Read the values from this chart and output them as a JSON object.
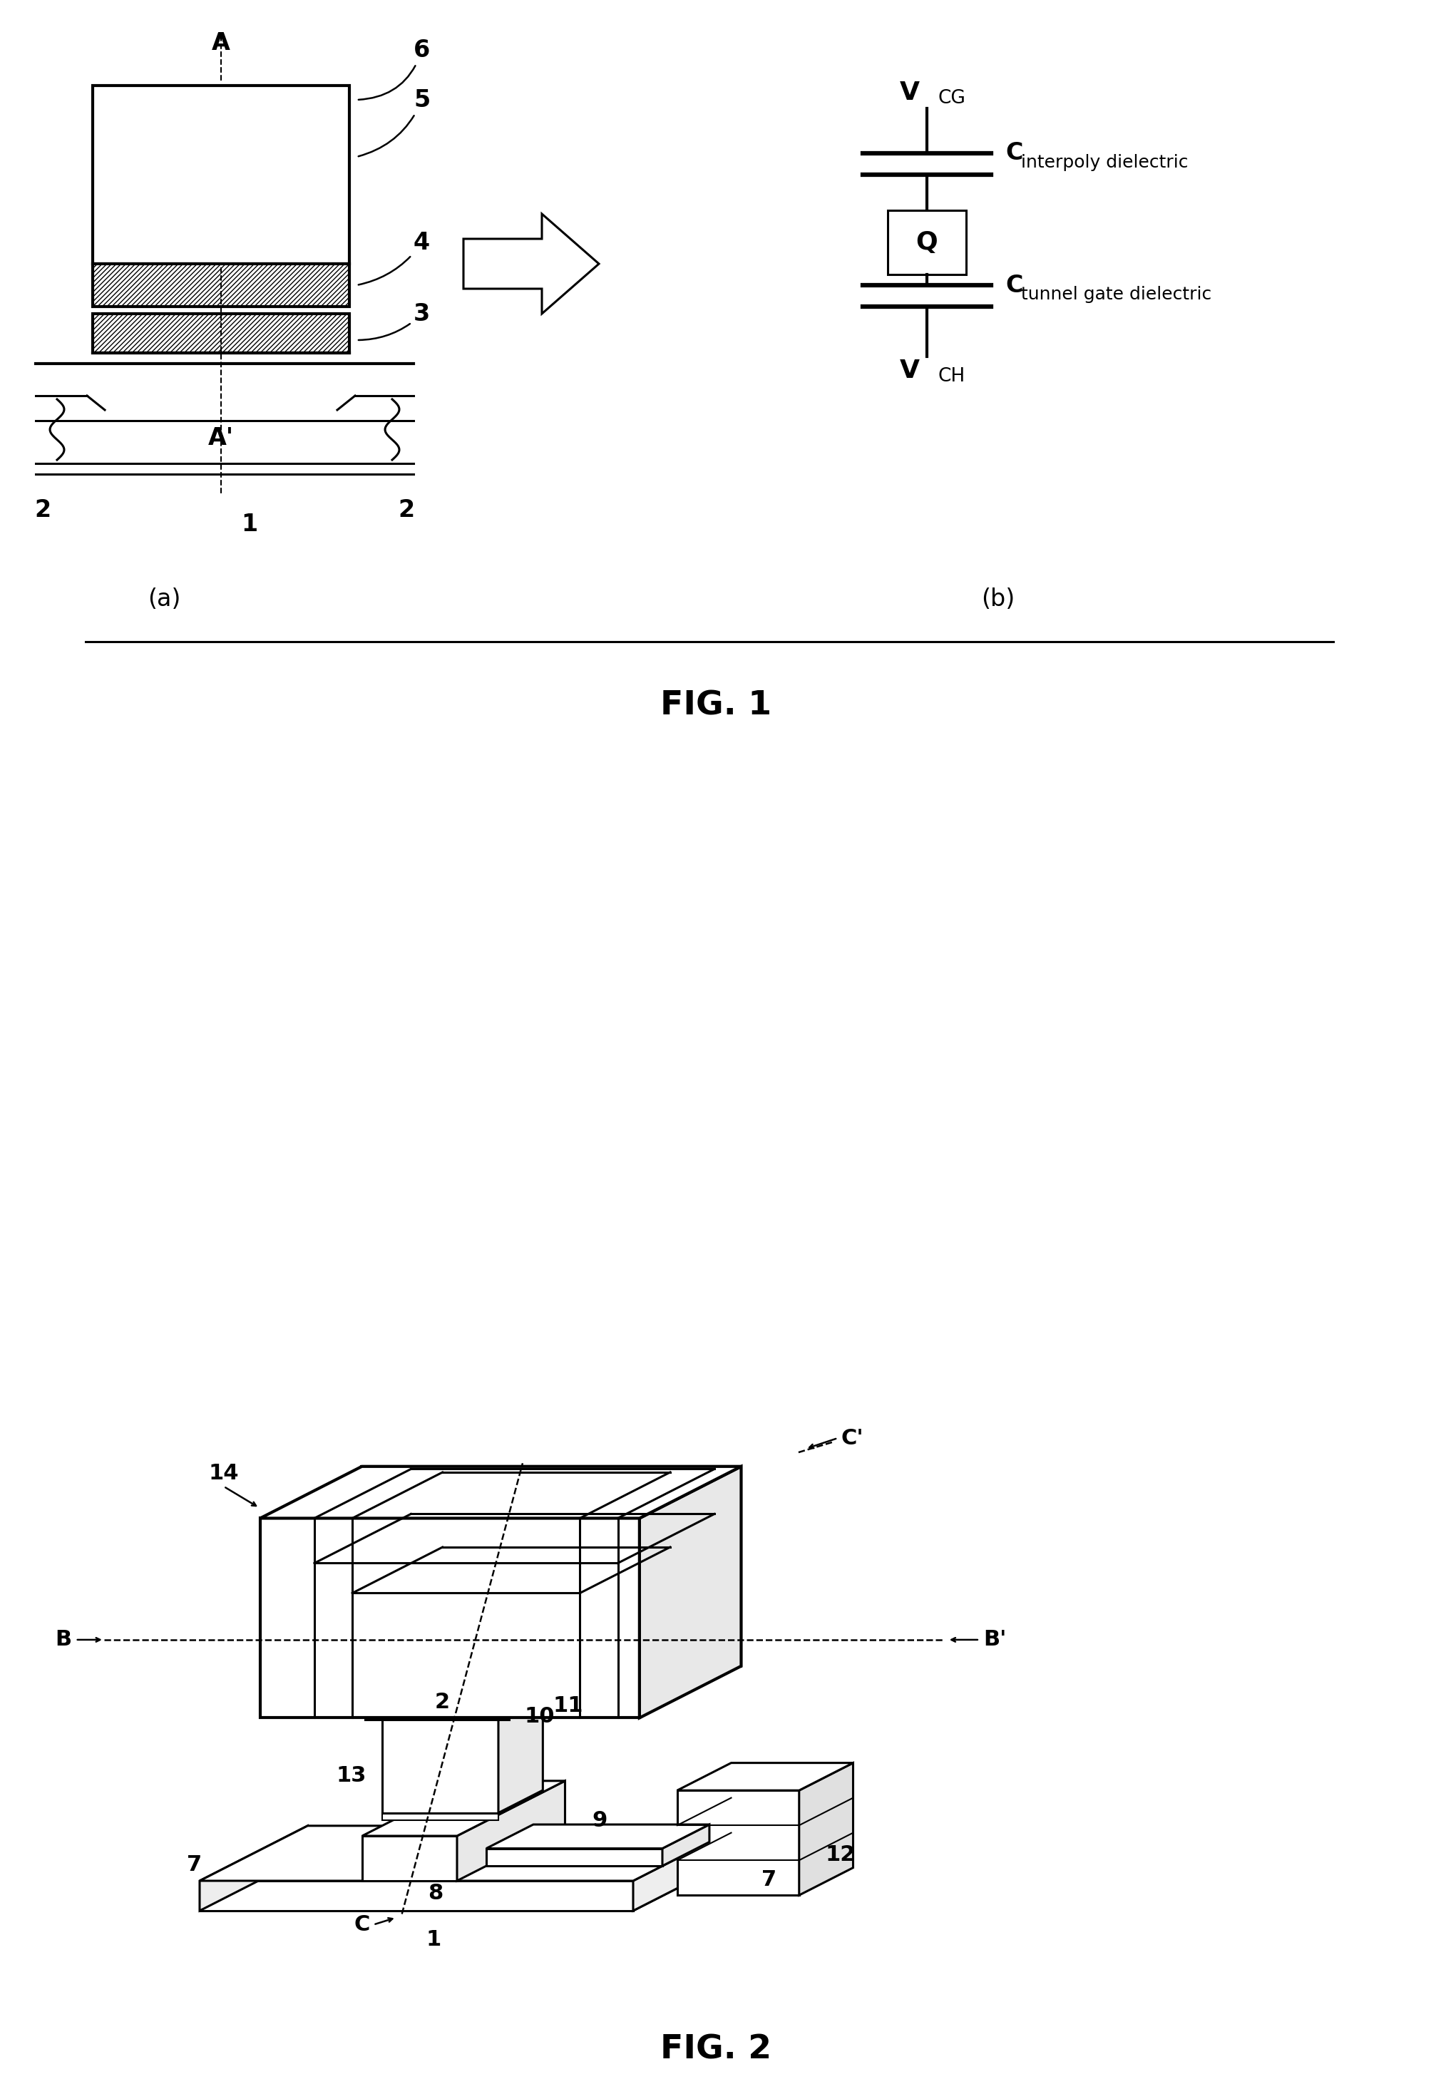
{
  "bg": "#ffffff",
  "lw": 2.2,
  "lw_thick": 3.0,
  "fig1_title": "FIG. 1",
  "fig2_title": "FIG. 2",
  "fig1_a_label": "(a)",
  "fig1_b_label": "(b)",
  "label_A": "A",
  "label_Aprime": "A'",
  "label_6": "6",
  "label_5": "5",
  "label_4": "4",
  "label_3": "3",
  "label_2a": "2",
  "label_2b": "2",
  "label_1a": "1",
  "vcg_V": "V",
  "vcg_sub": "CG",
  "vch_V": "V",
  "vch_sub": "CH",
  "q_label": "Q",
  "cap1_label_C": "C",
  "cap1_label_sub": "interpoly dielectric",
  "cap2_label_C": "C",
  "cap2_label_sub": "tunnel gate dielectric",
  "fig2_14": "14",
  "fig2_B": "B",
  "fig2_Bprime": "B'",
  "fig2_13": "13",
  "fig2_2": "2",
  "fig2_12": "12",
  "fig2_Cprime": "C'",
  "fig2_10": "10",
  "fig2_11": "11",
  "fig2_9": "9",
  "fig2_8": "8",
  "fig2_7a": "7",
  "fig2_7b": "7",
  "fig2_C": "C",
  "fig2_1": "1"
}
